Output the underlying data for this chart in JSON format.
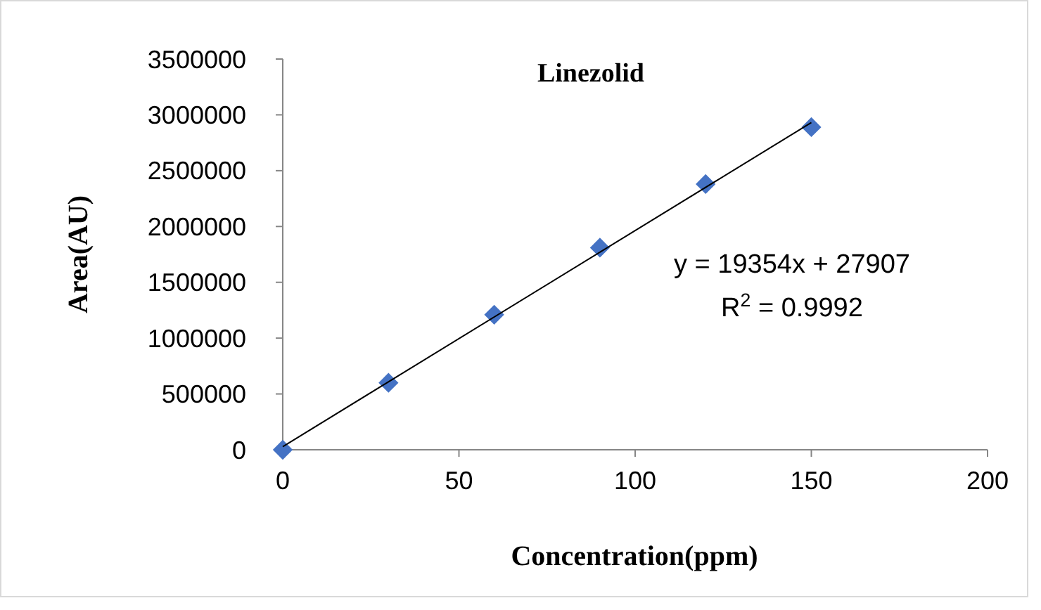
{
  "chart_data": {
    "type": "scatter",
    "title": "Linezolid",
    "xlabel": "Concentration(ppm)",
    "ylabel": "Area(AU)",
    "xlim": [
      0,
      200
    ],
    "xticks": [
      0,
      50,
      100,
      150,
      200
    ],
    "ylim": [
      0,
      3500000
    ],
    "yticks": [
      0,
      500000,
      1000000,
      1500000,
      2000000,
      2500000,
      3000000,
      3500000
    ],
    "marker": "diamond",
    "series": [
      {
        "color": "#4472c4",
        "x": [
          0,
          30,
          60,
          90,
          120,
          150
        ],
        "values": [
          0,
          600000,
          1210000,
          1810000,
          2380000,
          2890000
        ]
      },
      {
        "type": "line",
        "color": "#000000",
        "marker": "none",
        "x": [
          0,
          150
        ],
        "values": [
          28000,
          2931000
        ]
      }
    ],
    "annotations": [
      "y = 19354x + 27907",
      "R$^{2}$ = 0.9992"
    ]
  }
}
